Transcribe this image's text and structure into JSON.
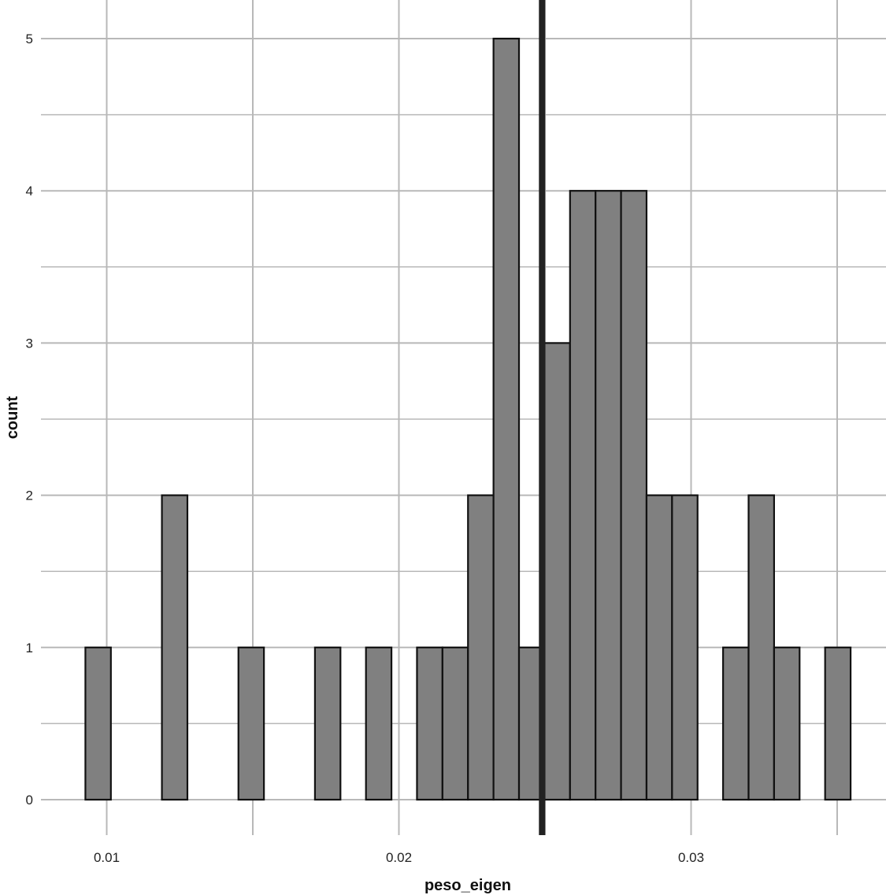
{
  "chart_data": {
    "type": "bar",
    "subtype": "histogram",
    "xlabel": "peso_eigen",
    "ylabel": "count",
    "xlim": [
      0.0088,
      0.036
    ],
    "ylim": [
      0,
      5.12
    ],
    "x_ticks": [
      0.01,
      0.02,
      0.03
    ],
    "x_tick_labels": [
      "0.01",
      "0.02",
      "0.03"
    ],
    "y_ticks": [
      0,
      1,
      2,
      3,
      4,
      5
    ],
    "y_tick_labels": [
      "0",
      "1",
      "2",
      "3",
      "4",
      "5"
    ],
    "grid": true,
    "bin_width": 0.000873,
    "bin_start": 0.00927,
    "counts": [
      1,
      0,
      0,
      2,
      0,
      0,
      1,
      0,
      0,
      1,
      0,
      1,
      0,
      1,
      1,
      2,
      5,
      1,
      3,
      4,
      4,
      4,
      2,
      2,
      0,
      1,
      2,
      1,
      0,
      1
    ],
    "vline": {
      "x": 0.0249
    },
    "colors": {
      "bar_fill": "#808080",
      "bar_stroke": "#111111",
      "grid": "#b8b8b8",
      "vline": "#222222",
      "background": "#ffffff"
    }
  }
}
